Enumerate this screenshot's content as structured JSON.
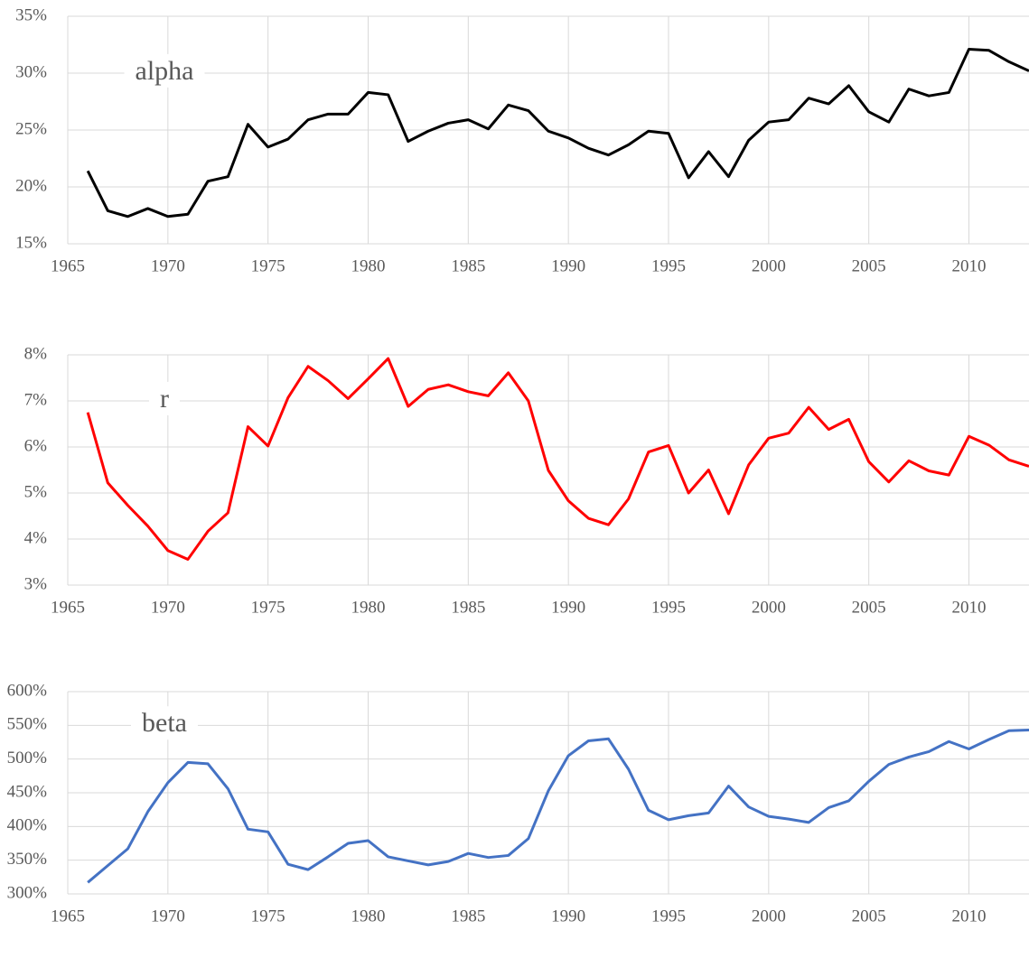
{
  "chart_data": [
    {
      "type": "line",
      "x": [
        1966,
        1967,
        1968,
        1969,
        1970,
        1971,
        1972,
        1973,
        1974,
        1975,
        1976,
        1977,
        1978,
        1979,
        1980,
        1981,
        1982,
        1983,
        1984,
        1985,
        1986,
        1987,
        1988,
        1989,
        1990,
        1991,
        1992,
        1993,
        1994,
        1995,
        1996,
        1997,
        1998,
        1999,
        2000,
        2001,
        2002,
        2003,
        2004,
        2005,
        2006,
        2007,
        2008,
        2009,
        2010,
        2011,
        2012,
        2013
      ],
      "series": [
        {
          "name": "alpha",
          "color": "#000000",
          "values": [
            21.4,
            17.9,
            17.4,
            18.1,
            17.4,
            17.6,
            20.5,
            20.9,
            25.5,
            23.5,
            24.2,
            25.9,
            26.4,
            26.4,
            28.3,
            28.1,
            24.0,
            24.9,
            25.6,
            25.9,
            25.1,
            27.2,
            26.7,
            24.9,
            24.3,
            23.4,
            22.8,
            23.7,
            24.9,
            24.7,
            20.8,
            23.1,
            20.9,
            24.1,
            25.7,
            25.9,
            27.8,
            27.3,
            28.9,
            26.6,
            25.7,
            28.6,
            28.0,
            28.3,
            32.1,
            32.0,
            31.0,
            30.2
          ]
        }
      ],
      "xlim": [
        1965,
        2013
      ],
      "xticks": [
        1965,
        1970,
        1975,
        1980,
        1985,
        1990,
        1995,
        2000,
        2005,
        2010
      ],
      "ylim": [
        15,
        35
      ],
      "yticks": [
        {
          "value": 15,
          "label": "15%"
        },
        {
          "value": 20,
          "label": "20%"
        },
        {
          "value": 25,
          "label": "25%"
        },
        {
          "value": 30,
          "label": "30%"
        },
        {
          "value": 35,
          "label": "35%"
        }
      ],
      "grid": true
    },
    {
      "type": "line",
      "x": [
        1966,
        1967,
        1968,
        1969,
        1970,
        1971,
        1972,
        1973,
        1974,
        1975,
        1976,
        1977,
        1978,
        1979,
        1980,
        1981,
        1982,
        1983,
        1984,
        1985,
        1986,
        1987,
        1988,
        1989,
        1990,
        1991,
        1992,
        1993,
        1994,
        1995,
        1996,
        1997,
        1998,
        1999,
        2000,
        2001,
        2002,
        2003,
        2004,
        2005,
        2006,
        2007,
        2008,
        2009,
        2010,
        2011,
        2012,
        2013
      ],
      "series": [
        {
          "name": "r",
          "color": "#ff0000",
          "values": [
            6.75,
            5.22,
            4.73,
            4.28,
            3.75,
            3.56,
            4.17,
            4.57,
            6.44,
            6.02,
            7.07,
            7.75,
            7.44,
            7.05,
            7.48,
            7.92,
            6.88,
            7.25,
            7.35,
            7.2,
            7.11,
            7.61,
            7.0,
            5.49,
            4.83,
            4.45,
            4.31,
            4.87,
            5.89,
            6.03,
            5.0,
            5.5,
            4.55,
            5.61,
            6.19,
            6.3,
            6.86,
            6.38,
            6.6,
            5.68,
            5.24,
            5.7,
            5.48,
            5.39,
            6.23,
            6.04,
            5.72,
            5.58
          ]
        }
      ],
      "xlim": [
        1965,
        2013
      ],
      "xticks": [
        1965,
        1970,
        1975,
        1980,
        1985,
        1990,
        1995,
        2000,
        2005,
        2010
      ],
      "ylim": [
        3,
        8
      ],
      "yticks": [
        {
          "value": 3,
          "label": "3%"
        },
        {
          "value": 4,
          "label": "4%"
        },
        {
          "value": 5,
          "label": "5%"
        },
        {
          "value": 6,
          "label": "6%"
        },
        {
          "value": 7,
          "label": "7%"
        },
        {
          "value": 8,
          "label": "8%"
        }
      ],
      "grid": true
    },
    {
      "type": "line",
      "x": [
        1966,
        1967,
        1968,
        1969,
        1970,
        1971,
        1972,
        1973,
        1974,
        1975,
        1976,
        1977,
        1978,
        1979,
        1980,
        1981,
        1982,
        1983,
        1984,
        1985,
        1986,
        1987,
        1988,
        1989,
        1990,
        1991,
        1992,
        1993,
        1994,
        1995,
        1996,
        1997,
        1998,
        1999,
        2000,
        2001,
        2002,
        2003,
        2004,
        2005,
        2006,
        2007,
        2008,
        2009,
        2010,
        2011,
        2012,
        2013
      ],
      "series": [
        {
          "name": "beta",
          "color": "#4472c4",
          "values": [
            317,
            342,
            367,
            422,
            465,
            495,
            493,
            456,
            396,
            392,
            344,
            336,
            355,
            375,
            379,
            355,
            349,
            343,
            348,
            360,
            354,
            357,
            382,
            453,
            505,
            527,
            530,
            485,
            424,
            410,
            416,
            420,
            460,
            429,
            415,
            411,
            406,
            428,
            438,
            467,
            492,
            503,
            511,
            526,
            515,
            529,
            542,
            543
          ]
        }
      ],
      "xlim": [
        1965,
        2013
      ],
      "xticks": [
        1965,
        1970,
        1975,
        1980,
        1985,
        1990,
        1995,
        2000,
        2005,
        2010
      ],
      "ylim": [
        300,
        600
      ],
      "yticks": [
        {
          "value": 300,
          "label": "300%"
        },
        {
          "value": 350,
          "label": "350%"
        },
        {
          "value": 400,
          "label": "400%"
        },
        {
          "value": 450,
          "label": "450%"
        },
        {
          "value": 500,
          "label": "500%"
        },
        {
          "value": 550,
          "label": "550%"
        },
        {
          "value": 600,
          "label": "600%"
        }
      ],
      "grid": true
    }
  ]
}
